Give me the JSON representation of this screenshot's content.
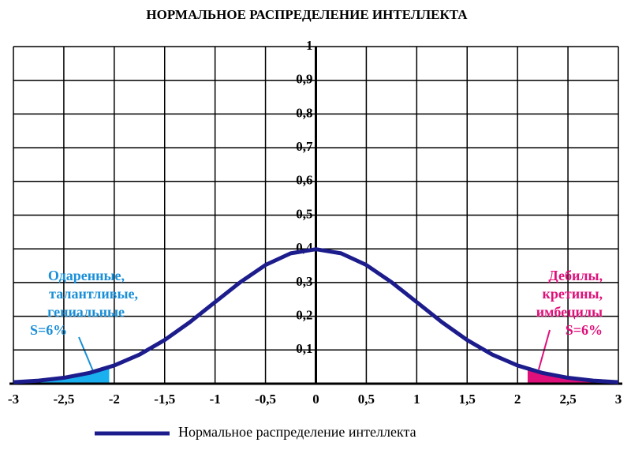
{
  "chart_data": {
    "type": "line",
    "title": "НОРМАЛЬНОЕ РАСПРЕДЕЛЕНИЕ ИНТЕЛЛЕКТА",
    "x": [
      -3,
      -2.75,
      -2.5,
      -2.25,
      -2,
      -1.75,
      -1.5,
      -1.25,
      -1,
      -0.75,
      -0.5,
      -0.25,
      0,
      0.25,
      0.5,
      0.75,
      1,
      1.25,
      1.5,
      1.75,
      2,
      2.25,
      2.5,
      2.75,
      3
    ],
    "series": [
      {
        "name": "Нормальное распределение интеллекта",
        "color": "#1c1c8c",
        "values": [
          0.0044,
          0.0091,
          0.0175,
          0.0317,
          0.054,
          0.0863,
          0.1295,
          0.1826,
          0.242,
          0.3011,
          0.3521,
          0.3867,
          0.3989,
          0.3867,
          0.3521,
          0.3011,
          0.242,
          0.1826,
          0.1295,
          0.0863,
          0.054,
          0.0317,
          0.0175,
          0.0091,
          0.0044
        ]
      }
    ],
    "shaded_regions": [
      {
        "color": "#1ab0f0",
        "x": [
          -3,
          -2.75,
          -2.5,
          -2.25,
          -2.05
        ],
        "values": [
          0.0044,
          0.0091,
          0.0175,
          0.0317,
          0.0488
        ]
      },
      {
        "color": "#e0107a",
        "x": [
          2.1,
          2.25,
          2.5,
          2.75,
          3
        ],
        "values": [
          0.044,
          0.0317,
          0.0175,
          0.0091,
          0.0044
        ]
      }
    ],
    "annotations": [
      {
        "lines": [
          "Одаренные,",
          "талантливые,",
          "гениальные",
          "S=6%"
        ],
        "color": "#1a8fd8"
      },
      {
        "lines": [
          "Дебилы,",
          "кретины,",
          "имбецилы",
          "S=6%"
        ],
        "color": "#e0107a"
      }
    ],
    "xlim": [
      -3,
      3
    ],
    "ylim": [
      0,
      1
    ],
    "xticks": [
      -3,
      {
        "value": -2.5,
        "label": "-2,5"
      },
      -2,
      {
        "value": -1.5,
        "label": "-1,5"
      },
      -1,
      {
        "value": -0.5,
        "label": "-0,5"
      },
      0,
      {
        "value": 0.5,
        "label": "0,5"
      },
      1,
      {
        "value": 1.5,
        "label": "1,5"
      },
      2,
      {
        "value": 2.5,
        "label": "2,5"
      },
      3
    ],
    "yticks": [
      {
        "value": 0.1,
        "label": "0,1"
      },
      {
        "value": 0.2,
        "label": "0,2"
      },
      {
        "value": 0.3,
        "label": "0,3"
      },
      {
        "value": 0.4,
        "label": "0,4"
      },
      {
        "value": 0.5,
        "label": "0,5"
      },
      {
        "value": 0.6,
        "label": "0,6"
      },
      {
        "value": 0.7,
        "label": "0,7"
      },
      {
        "value": 0.8,
        "label": "0,8"
      },
      {
        "value": 0.9,
        "label": "0,9"
      },
      1
    ],
    "grid": true
  }
}
